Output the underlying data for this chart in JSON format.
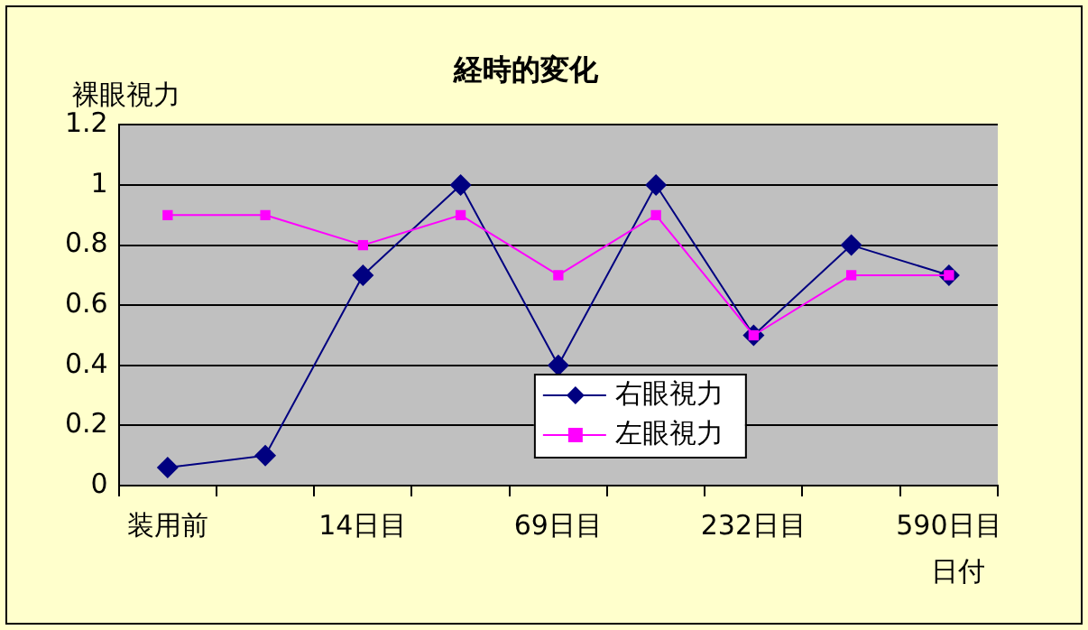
{
  "chart_data": {
    "type": "line",
    "title": "経時的変化",
    "xlabel": "日付",
    "ylabel": "裸眼視力",
    "categories": [
      "装用前",
      null,
      "14日目",
      null,
      "69日目",
      null,
      "232日目",
      null,
      "590日目"
    ],
    "series": [
      {
        "name": "右眼視力",
        "color": "#000080",
        "marker": "diamond",
        "values": [
          0.06,
          0.1,
          0.7,
          1.0,
          0.4,
          1.0,
          0.5,
          0.8,
          0.7
        ]
      },
      {
        "name": "左眼視力",
        "color": "#ff00ff",
        "marker": "square",
        "values": [
          0.9,
          0.9,
          0.8,
          0.9,
          0.7,
          0.9,
          0.5,
          0.7,
          0.7
        ]
      }
    ],
    "ylim": [
      0,
      1.2
    ],
    "yticks": [
      0,
      0.2,
      0.4,
      0.6,
      0.8,
      1,
      1.2
    ],
    "grid": "y",
    "legend": "bottom",
    "line_style": "solid"
  }
}
